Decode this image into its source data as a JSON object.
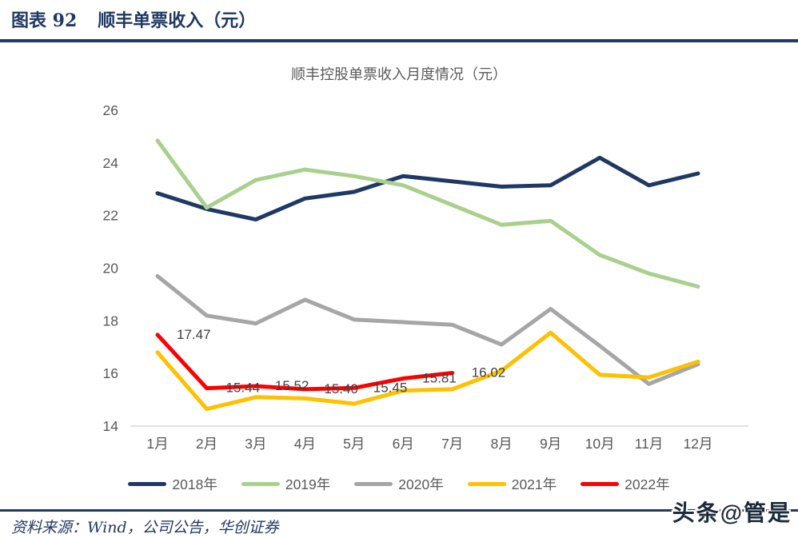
{
  "figure": {
    "caption_label": "图表 92",
    "caption_title": "顺丰单票收入（元）"
  },
  "chart_data": {
    "type": "line",
    "title": "顺丰控股单票收入月度情况（元）",
    "categories": [
      "1月",
      "2月",
      "3月",
      "4月",
      "5月",
      "6月",
      "7月",
      "8月",
      "9月",
      "10月",
      "11月",
      "12月"
    ],
    "series": [
      {
        "name": "2018年",
        "color": "#1F3864",
        "values": [
          22.85,
          22.25,
          21.85,
          22.65,
          22.9,
          23.5,
          23.3,
          23.1,
          23.15,
          24.2,
          23.15,
          23.6
        ]
      },
      {
        "name": "2019年",
        "color": "#A9D18E",
        "values": [
          24.85,
          22.3,
          23.35,
          23.75,
          23.5,
          23.15,
          22.4,
          21.65,
          21.8,
          20.5,
          19.8,
          19.3
        ]
      },
      {
        "name": "2020年",
        "color": "#A6A6A6",
        "values": [
          19.7,
          18.2,
          17.9,
          18.8,
          18.05,
          17.95,
          17.85,
          17.1,
          18.45,
          17.05,
          15.6,
          16.35
        ]
      },
      {
        "name": "2021年",
        "color": "#FFC000",
        "values": [
          16.8,
          14.65,
          15.1,
          15.05,
          14.85,
          15.35,
          15.4,
          16.1,
          17.55,
          15.95,
          15.85,
          16.45
        ]
      },
      {
        "name": "2022年",
        "color": "#FF0000",
        "values": [
          17.47,
          15.44,
          15.52,
          15.4,
          15.45,
          15.81,
          16.02
        ],
        "data_labels": [
          "17.47",
          "15.44",
          "15.52",
          "15.40",
          "15.45",
          "15.81",
          "16.02"
        ]
      }
    ],
    "ylim": [
      14,
      26
    ],
    "yticks": [
      14,
      16,
      18,
      20,
      22,
      24,
      26
    ],
    "grid": false,
    "legend_position": "bottom"
  },
  "source": {
    "text": "资料来源：Wind，公司公告，华创证券"
  },
  "watermark": {
    "text": "头条@管是"
  }
}
